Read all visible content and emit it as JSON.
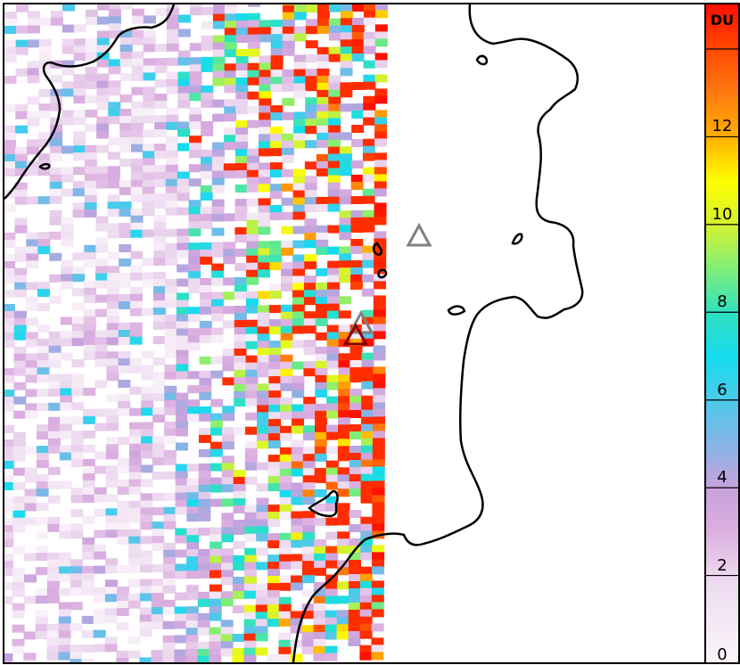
{
  "colorbar": {
    "unit_label": "DU",
    "min": 0,
    "max": 15,
    "ticks": [
      {
        "value": 0,
        "label": "0"
      },
      {
        "value": 2,
        "label": "2"
      },
      {
        "value": 4,
        "label": "4"
      },
      {
        "value": 6,
        "label": "6"
      },
      {
        "value": 8,
        "label": "8"
      },
      {
        "value": 10,
        "label": "10"
      },
      {
        "value": 12,
        "label": "12"
      },
      {
        "value": 14,
        "label": ""
      }
    ],
    "color_stops": [
      [
        0,
        "#fbf6fb"
      ],
      [
        2,
        "#ecd8ef"
      ],
      [
        3,
        "#dcb0e0"
      ],
      [
        4,
        "#c8a2dc"
      ],
      [
        5,
        "#86b4e6"
      ],
      [
        6,
        "#4ccaea"
      ],
      [
        7,
        "#14dcee"
      ],
      [
        8,
        "#30e0c0"
      ],
      [
        9,
        "#80ee78"
      ],
      [
        10,
        "#d4f230"
      ],
      [
        11,
        "#ffff00"
      ],
      [
        12,
        "#ffb000"
      ],
      [
        13,
        "#ff7a10"
      ],
      [
        14,
        "#ff4a00"
      ],
      [
        15,
        "#ff1000"
      ]
    ]
  },
  "markers": [
    {
      "name": "volcano-gray-north",
      "color": "#808080"
    },
    {
      "name": "volcano-gray-south",
      "color": "#808080"
    },
    {
      "name": "volcano-highlighted",
      "color": "#8b0000"
    }
  ],
  "colors": {
    "coastline": "#000000",
    "no_data": "#ffffff"
  }
}
